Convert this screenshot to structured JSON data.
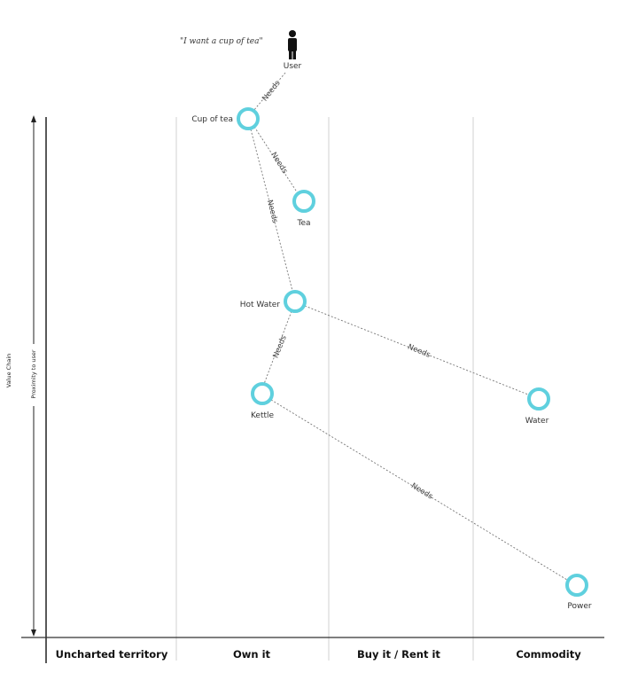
{
  "quote": "\"I want a cup of tea\"",
  "user_label": "User",
  "axis": {
    "value_chain": "Value Chain",
    "proximity": "Proximity to user"
  },
  "columns": [
    "Uncharted territory",
    "Own it",
    "Buy it / Rent it",
    "Commodity"
  ],
  "nodes": [
    {
      "id": "cup",
      "label": "Cup of tea"
    },
    {
      "id": "tea",
      "label": "Tea"
    },
    {
      "id": "hotwater",
      "label": "Hot Water"
    },
    {
      "id": "kettle",
      "label": "Kettle"
    },
    {
      "id": "water",
      "label": "Water"
    },
    {
      "id": "power",
      "label": "Power"
    }
  ],
  "edges": [
    {
      "from": "user",
      "to": "cup",
      "label": "Needs"
    },
    {
      "from": "cup",
      "to": "tea",
      "label": "Needs"
    },
    {
      "from": "cup",
      "to": "hotwater",
      "label": "Needs"
    },
    {
      "from": "hotwater",
      "to": "kettle",
      "label": "Needs"
    },
    {
      "from": "hotwater",
      "to": "water",
      "label": "Needs"
    },
    {
      "from": "kettle",
      "to": "power",
      "label": "Needs"
    }
  ]
}
